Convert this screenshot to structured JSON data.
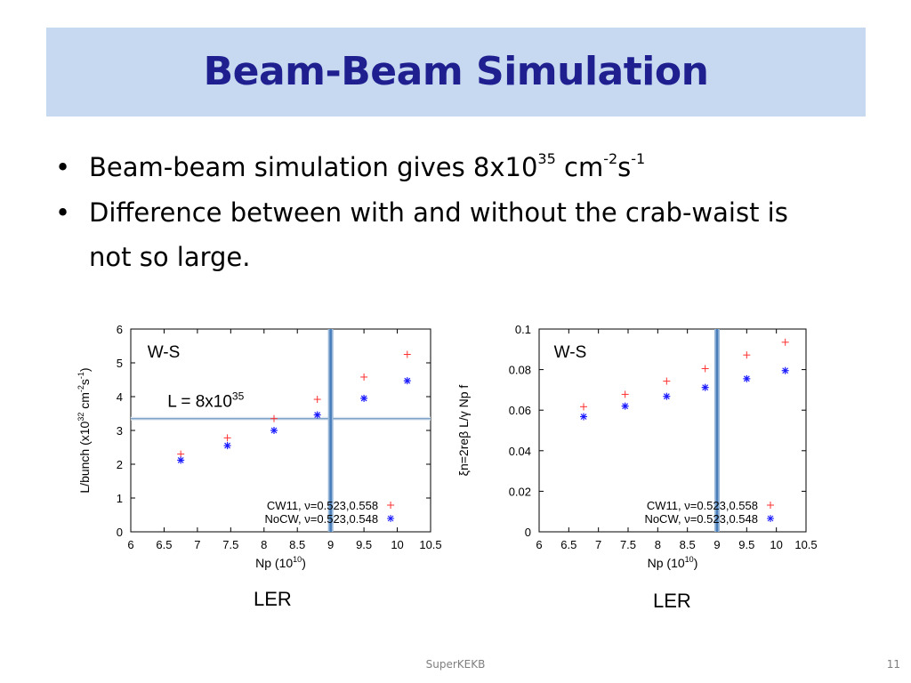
{
  "slide": {
    "title": "Beam-Beam Simulation",
    "bullets": [
      {
        "text": "Beam-beam simulation gives 8x10",
        "sup1": "35",
        "mid": " cm",
        "sup2": "-2",
        "mid2": "s",
        "sup3": "-1"
      },
      {
        "line1": "Difference between with and without the crab-waist is",
        "line2": "not so large."
      }
    ],
    "bullet_glyph": "•",
    "footer": "SuperKEKB",
    "page_number": "11"
  },
  "colors": {
    "title_bg": "#c6d9f1",
    "title_text": "#1f1f8f",
    "cw11": "#ff3030",
    "nocw": "#1a1aff",
    "vline": "#4a7ebb",
    "hline": "#7fa3c8"
  },
  "chart_data": [
    {
      "type": "scatter",
      "caption": "LER",
      "annotation": "W-S",
      "hline_label": "L = 8x10",
      "hline_label_sup": "35",
      "xlabel": "Np (10",
      "xlabel_sup": "10",
      "xlabel_end": ")",
      "ylabel": "L/bunch (x10",
      "ylabel_sup1": "32",
      "ylabel_mid": " cm",
      "ylabel_sup2": "-2",
      "ylabel_mid2": "s",
      "ylabel_sup3": "-1",
      "ylabel_end": ")",
      "xlim": [
        6,
        10.5
      ],
      "ylim": [
        0,
        6
      ],
      "xticks": [
        "6",
        "6.5",
        "7",
        "7.5",
        "8",
        "8.5",
        "9",
        "9.5",
        "10",
        "10.5"
      ],
      "yticks": [
        "0",
        "1",
        "2",
        "3",
        "4",
        "5",
        "6"
      ],
      "vline": 9.0,
      "hline": 3.35,
      "series": [
        {
          "name": "CW11, ν=0.523,0.558",
          "marker": "plus",
          "x": [
            6.75,
            7.45,
            8.15,
            8.8,
            9.5,
            10.15
          ],
          "y": [
            2.3,
            2.78,
            3.35,
            3.92,
            4.58,
            5.25
          ]
        },
        {
          "name": "NoCW, ν=0.523,0.548",
          "marker": "asterisk",
          "x": [
            6.75,
            7.45,
            8.15,
            8.8,
            9.5,
            10.15
          ],
          "y": [
            2.12,
            2.55,
            3.0,
            3.46,
            3.95,
            4.47
          ]
        }
      ]
    },
    {
      "type": "scatter",
      "caption": "LER",
      "annotation": "W-S",
      "xlabel": "Np (10",
      "xlabel_sup": "10",
      "xlabel_end": ")",
      "ylabel": "ξn=2reβ L/γ Np f",
      "xlim": [
        6,
        10.5
      ],
      "ylim": [
        0,
        0.1
      ],
      "xticks": [
        "6",
        "6.5",
        "7",
        "7.5",
        "8",
        "8.5",
        "9",
        "9.5",
        "10",
        "10.5"
      ],
      "yticks": [
        "0",
        "0.02",
        "0.04",
        "0.06",
        "0.08",
        "0.1"
      ],
      "vline": 9.0,
      "series": [
        {
          "name": "CW11, ν=0.523,0.558",
          "marker": "plus",
          "x": [
            6.75,
            7.45,
            8.15,
            8.8,
            9.5,
            10.15
          ],
          "y": [
            0.0617,
            0.0678,
            0.0743,
            0.0805,
            0.0872,
            0.0935
          ]
        },
        {
          "name": "NoCW, ν=0.523,0.548",
          "marker": "asterisk",
          "x": [
            6.75,
            7.45,
            8.15,
            8.8,
            9.5,
            10.15
          ],
          "y": [
            0.0568,
            0.062,
            0.0668,
            0.0712,
            0.0755,
            0.0795
          ]
        }
      ]
    }
  ]
}
